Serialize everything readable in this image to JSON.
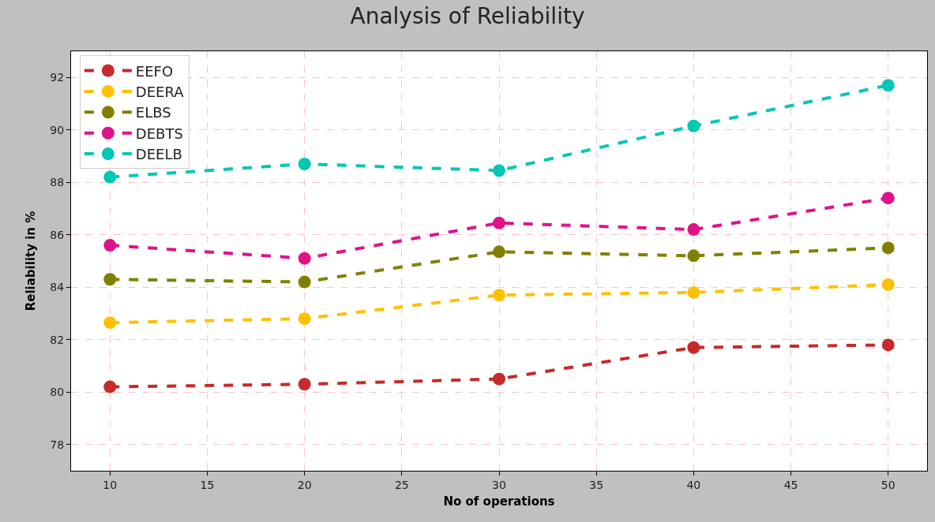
{
  "chart_data": {
    "type": "line",
    "title": "Analysis of Reliability",
    "xlabel": "No of operations",
    "ylabel": "Reliability in %",
    "x": [
      10,
      20,
      30,
      40,
      50
    ],
    "series": [
      {
        "name": "EEFO",
        "color": "#c62a2a",
        "values": [
          80.2,
          80.3,
          80.5,
          81.7,
          81.8
        ]
      },
      {
        "name": "DEERA",
        "color": "#ffc000",
        "values": [
          82.65,
          82.8,
          83.7,
          83.8,
          84.1
        ]
      },
      {
        "name": "ELBS",
        "color": "#808000",
        "values": [
          84.3,
          84.2,
          85.35,
          85.2,
          85.5
        ]
      },
      {
        "name": "DEBTS",
        "color": "#e0128a",
        "values": [
          85.6,
          85.1,
          86.45,
          86.2,
          87.4
        ]
      },
      {
        "name": "DEELB",
        "color": "#00c8b4",
        "values": [
          88.2,
          88.7,
          88.45,
          90.15,
          91.7
        ]
      }
    ],
    "xlim": [
      8,
      52
    ],
    "ylim": [
      77,
      93
    ],
    "xticks": [
      10,
      15,
      20,
      25,
      30,
      35,
      40,
      45,
      50
    ],
    "yticks": [
      78,
      80,
      82,
      84,
      86,
      88,
      90,
      92
    ],
    "grid": true,
    "legend": "top left",
    "marker": "circle",
    "line_style": "dashed"
  }
}
